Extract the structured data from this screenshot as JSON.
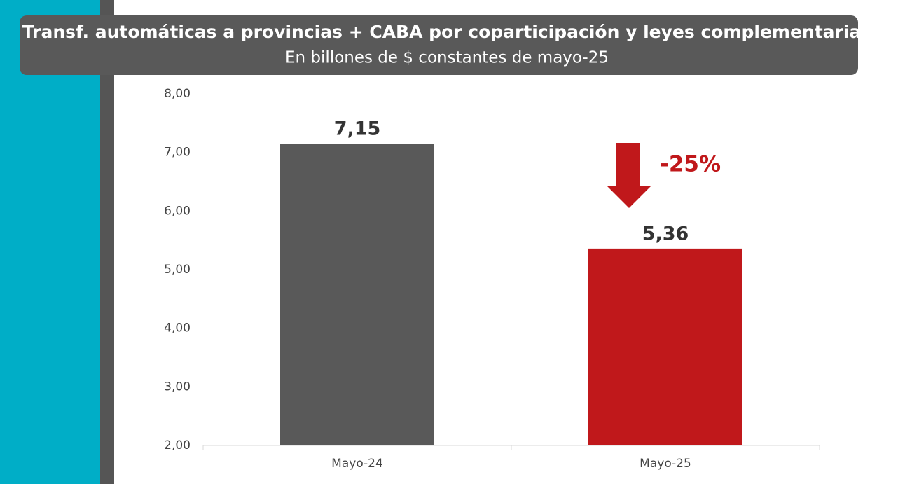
{
  "chart_data": {
    "type": "bar",
    "title": "Transf. automáticas a provincias + CABA por coparticipación y leyes complementarias",
    "subtitle": "En billones de $ constantes de mayo-25",
    "categories": [
      "Mayo-24",
      "Mayo-25"
    ],
    "values": [
      7.15,
      5.36
    ],
    "value_labels": [
      "7,15",
      "5,36"
    ],
    "colors": [
      "#595959",
      "#c0181b"
    ],
    "ylim": [
      2,
      8
    ],
    "yticks": [
      {
        "value": 2,
        "label": "2,00"
      },
      {
        "value": 3,
        "label": "3,00"
      },
      {
        "value": 4,
        "label": "4,00"
      },
      {
        "value": 5,
        "label": "5,00"
      },
      {
        "value": 6,
        "label": "6,00"
      },
      {
        "value": 7,
        "label": "7,00"
      },
      {
        "value": 8,
        "label": "8,00"
      }
    ],
    "grid": false,
    "annotation": "-25%"
  }
}
